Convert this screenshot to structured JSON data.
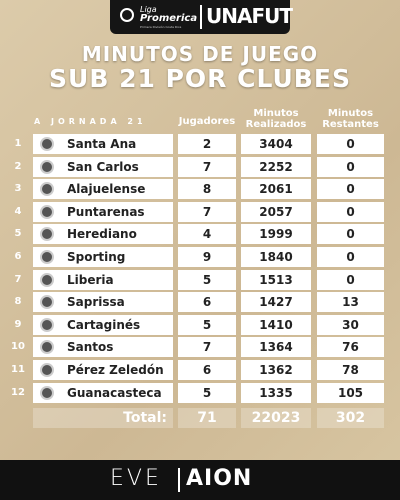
{
  "header": {
    "logo_small": "Liga",
    "logo_main": "Promerica",
    "logo_sub": "Primera División Costa Rica",
    "brand": "UNAFUT"
  },
  "title": [
    "MINUTOS DE JUEGO",
    "SUB 21 POR CLUBES"
  ],
  "subtitle": "A JORNADA 21",
  "table": {
    "columns": [
      "Jugadores",
      "Minutos Realizados",
      "Minutos Restantes"
    ],
    "rows": [
      [
        1,
        "Santa Ana",
        2,
        3404,
        0
      ],
      [
        2,
        "San Carlos",
        7,
        2252,
        0
      ],
      [
        3,
        "Alajuelense",
        8,
        2061,
        0
      ],
      [
        4,
        "Puntarenas",
        7,
        2057,
        0
      ],
      [
        5,
        "Herediano",
        4,
        1999,
        0
      ],
      [
        6,
        "Sporting",
        9,
        1840,
        0
      ],
      [
        7,
        "Liberia",
        5,
        1513,
        0
      ],
      [
        8,
        "Saprissa",
        6,
        1427,
        13
      ],
      [
        9,
        "Cartaginés",
        5,
        1410,
        30
      ],
      [
        10,
        "Santos",
        7,
        1364,
        76
      ],
      [
        11,
        "Pérez Zeledón",
        6,
        1362,
        78
      ],
      [
        12,
        "Guanacasteca",
        5,
        1335,
        105
      ]
    ],
    "total": [
      "Total:",
      71,
      22023,
      302
    ]
  },
  "footer": {
    "left": "EVE",
    "right": "AION"
  }
}
